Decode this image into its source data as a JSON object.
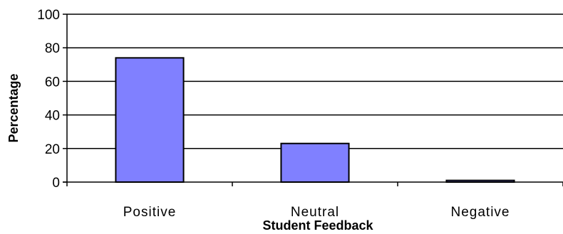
{
  "chart_data": {
    "type": "bar",
    "title": "",
    "xlabel": "Student Feedback",
    "ylabel": "Percentage",
    "categories": [
      "Positive",
      "Neutral",
      "Negative"
    ],
    "values": [
      74,
      23,
      1
    ],
    "ylim": [
      0,
      100
    ],
    "yticks": [
      0,
      20,
      40,
      60,
      80,
      100
    ],
    "grid": "horizontal",
    "legend": "none",
    "bar_color": "#8080ff",
    "bar_border_color": "#000000",
    "grid_color": "#000000"
  }
}
